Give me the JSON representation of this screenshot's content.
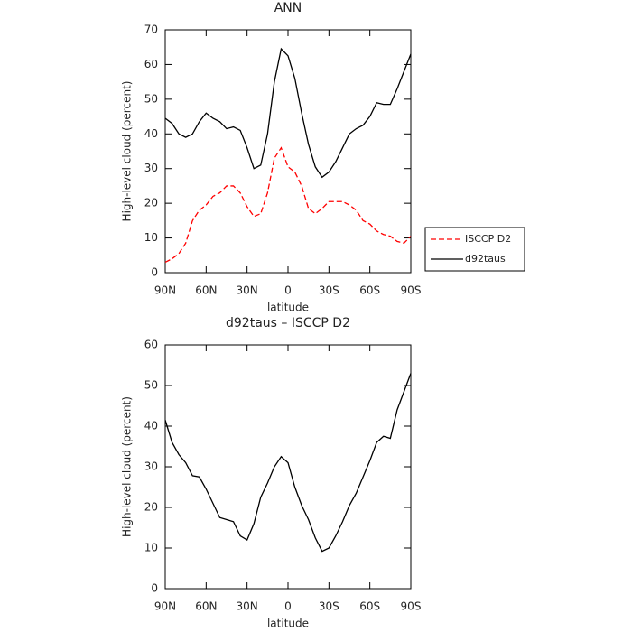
{
  "chart_data": [
    {
      "type": "line",
      "title": "ANN",
      "xlabel": "latitude",
      "ylabel": "High-level cloud (percent)",
      "x": [
        90,
        85,
        80,
        75,
        70,
        65,
        60,
        55,
        50,
        45,
        40,
        35,
        30,
        25,
        20,
        15,
        10,
        5,
        0,
        -5,
        -10,
        -15,
        -20,
        -25,
        -30,
        -35,
        -40,
        -45,
        -50,
        -55,
        -60,
        -65,
        -70,
        -75,
        -80,
        -85,
        -90
      ],
      "series": [
        {
          "name": "ISCCP D2",
          "color": "#ff0000",
          "style": "dashed",
          "values": [
            3,
            4,
            5.5,
            8.5,
            15,
            18,
            19.5,
            22,
            23,
            25,
            25,
            23,
            19,
            16.2,
            17,
            23,
            33,
            36,
            30.5,
            29,
            25,
            18.5,
            17,
            18.5,
            20.5,
            20.5,
            20.5,
            19.5,
            18,
            15,
            14,
            12,
            11,
            10.5,
            9,
            8.5,
            10.5
          ]
        },
        {
          "name": "d92taus",
          "color": "#000000",
          "style": "solid",
          "values": [
            44.5,
            43,
            40,
            39,
            40,
            43.5,
            46,
            44.5,
            43.5,
            41.5,
            42,
            41,
            36,
            30,
            31,
            40,
            55,
            64.5,
            62.5,
            56,
            46,
            37,
            30.5,
            27.5,
            29,
            32,
            36,
            40,
            41.5,
            42.5,
            45,
            49,
            48.5,
            48.5,
            53,
            58,
            63
          ]
        }
      ],
      "xlim": [
        90,
        -90
      ],
      "xticks": [
        {
          "value": 90,
          "label": "90N"
        },
        {
          "value": 60,
          "label": "60N"
        },
        {
          "value": 30,
          "label": "30N"
        },
        0,
        {
          "value": -30,
          "label": "30S"
        },
        {
          "value": -60,
          "label": "60S"
        },
        {
          "value": -90,
          "label": "90S"
        }
      ],
      "ylim": [
        0,
        70
      ],
      "yticks": [
        0,
        10,
        20,
        30,
        40,
        50,
        60,
        70
      ],
      "legend": "right"
    },
    {
      "type": "line",
      "title": "d92taus – ISCCP D2",
      "xlabel": "latitude",
      "ylabel": "High-level cloud (percent)",
      "x": [
        90,
        85,
        80,
        75,
        70,
        65,
        60,
        55,
        50,
        45,
        40,
        35,
        30,
        25,
        20,
        15,
        10,
        5,
        0,
        -5,
        -10,
        -15,
        -20,
        -25,
        -30,
        -35,
        -40,
        -45,
        -50,
        -55,
        -60,
        -65,
        -70,
        -75,
        -80,
        -85,
        -90
      ],
      "series": [
        {
          "color": "#000000",
          "style": "solid",
          "values": [
            41.5,
            36,
            33,
            31,
            27.8,
            27.5,
            24.5,
            21,
            17.5,
            17,
            16.5,
            13,
            12,
            16,
            22.5,
            26,
            30,
            32.5,
            31,
            25,
            20.5,
            17,
            12.5,
            9.2,
            10,
            13,
            16.5,
            20.5,
            23.5,
            27.5,
            31.5,
            36,
            37.5,
            37,
            44,
            48.5,
            53
          ]
        }
      ],
      "xlim": [
        90,
        -90
      ],
      "xticks": [
        {
          "value": 90,
          "label": "90N"
        },
        {
          "value": 60,
          "label": "60N"
        },
        {
          "value": 30,
          "label": "30N"
        },
        0,
        {
          "value": -30,
          "label": "30S"
        },
        {
          "value": -60,
          "label": "60S"
        },
        {
          "value": -90,
          "label": "90S"
        }
      ],
      "ylim": [
        0,
        60
      ],
      "yticks": [
        0,
        10,
        20,
        30,
        40,
        50,
        60
      ]
    }
  ]
}
